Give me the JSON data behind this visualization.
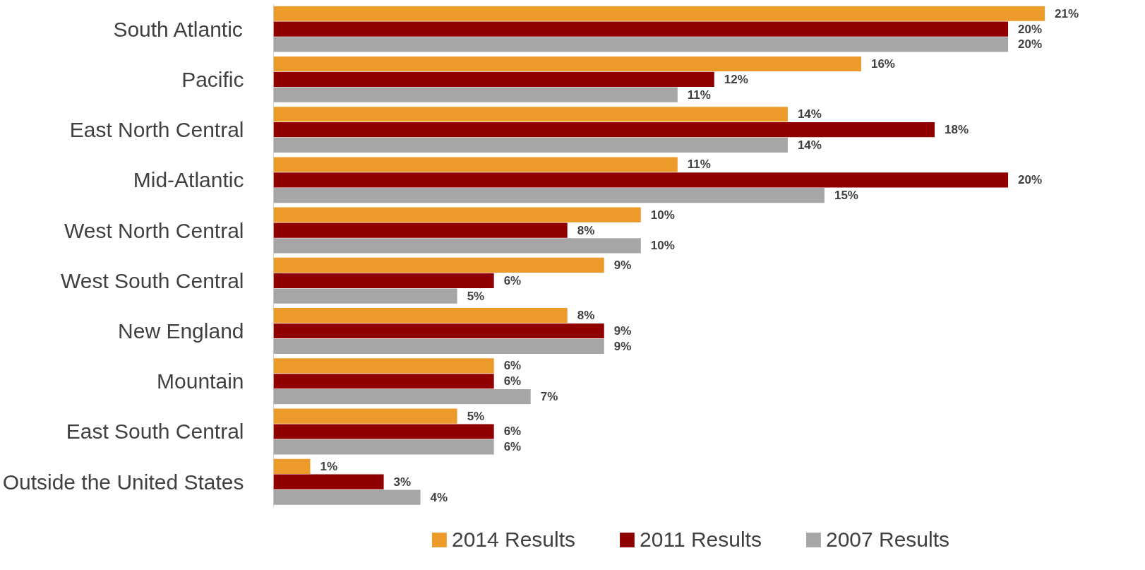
{
  "chart_data": {
    "type": "bar",
    "orientation": "horizontal",
    "categories": [
      "South Atlantic",
      "Pacific",
      "East North Central",
      "Mid-Atlantic",
      "West North Central",
      "West South Central",
      "New England",
      "Mountain",
      "East South Central",
      "Outside the United States"
    ],
    "series": [
      {
        "name": "2014 Results",
        "color": "#ec9a29",
        "values": [
          21,
          16,
          14,
          11,
          10,
          9,
          8,
          6,
          5,
          1
        ],
        "value_labels": [
          "21%",
          "16%",
          "14%",
          "11%",
          "10%",
          "9%",
          "8%",
          "6%",
          "5%",
          "1%"
        ]
      },
      {
        "name": "2011 Results",
        "color": "#900000",
        "values": [
          20,
          12,
          18,
          20,
          8,
          6,
          9,
          6,
          6,
          3
        ],
        "value_labels": [
          "20%",
          "12%",
          "18%",
          "20%",
          "8%",
          "6%",
          "9%",
          "6%",
          "6%",
          "3%"
        ]
      },
      {
        "name": "2007 Results",
        "color": "#a6a6a6",
        "values": [
          20,
          11,
          14,
          15,
          10,
          5,
          9,
          7,
          6,
          4
        ],
        "value_labels": [
          "20%",
          "11%",
          "14%",
          "15%",
          "10%",
          "5%",
          "9%",
          "7%",
          "6%",
          "4%"
        ]
      }
    ],
    "tick_labels": "y",
    "grid": false,
    "legend": "bottom"
  }
}
